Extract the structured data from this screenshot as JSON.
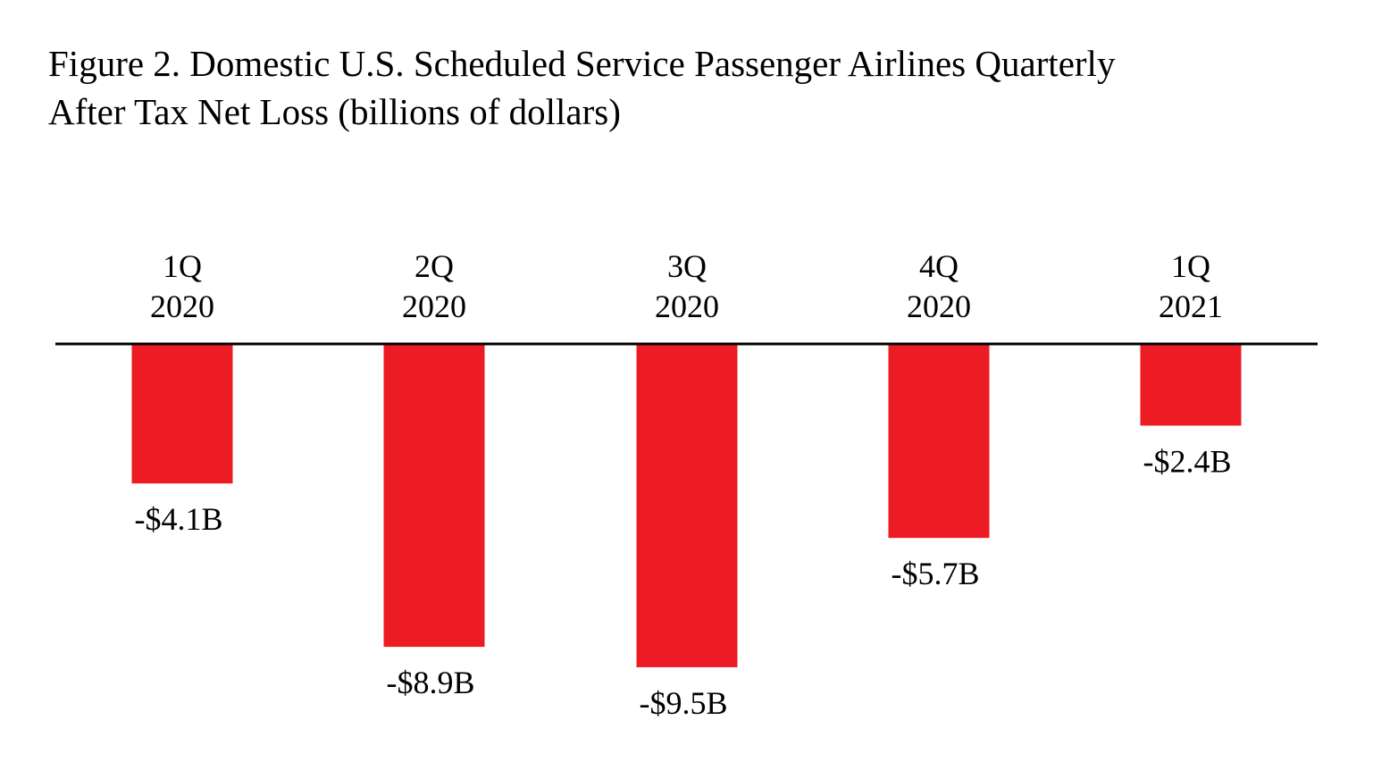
{
  "chart_data": {
    "type": "bar",
    "title_line1": "Figure 2. Domestic U.S. Scheduled Service Passenger Airlines Quarterly",
    "title_line2": "After Tax Net Loss (billions of dollars)",
    "xlabel": "",
    "ylabel": "",
    "categories": [
      {
        "line1": "1Q",
        "line2": "2020"
      },
      {
        "line1": "2Q",
        "line2": "2020"
      },
      {
        "line1": "3Q",
        "line2": "2020"
      },
      {
        "line1": "4Q",
        "line2": "2020"
      },
      {
        "line1": "1Q",
        "line2": "2021"
      }
    ],
    "values": [
      -4.1,
      -8.9,
      -9.5,
      -5.7,
      -2.4
    ],
    "value_labels": [
      "-$4.1B",
      "-$8.9B",
      "-$9.5B",
      "-$5.7B",
      "-$2.4B"
    ],
    "ylim": [
      -10,
      0
    ],
    "grid": false,
    "legend": "none",
    "bar_color": "#ED1C24",
    "axis_color": "#000000"
  }
}
